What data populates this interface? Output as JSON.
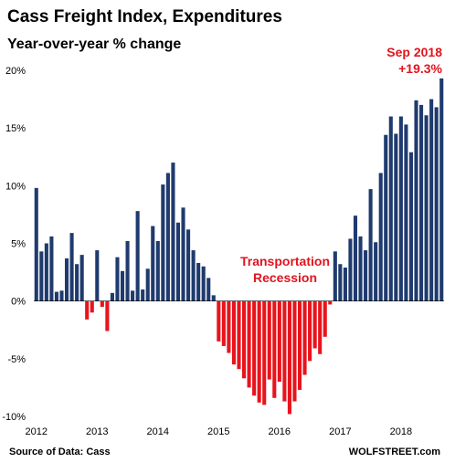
{
  "chart_data": {
    "type": "bar",
    "title": "Cass Freight Index, Expenditures",
    "subtitle": "Year-over-year % change",
    "ylim": [
      -10,
      20
    ],
    "y_ticks": [
      -10,
      -5,
      0,
      5,
      10,
      15,
      20
    ],
    "y_tick_labels": [
      "-10%",
      "-5%",
      "0%",
      "5%",
      "10%",
      "15%",
      "20%"
    ],
    "x_tick_labels": [
      "2012",
      "2013",
      "2014",
      "2015",
      "2016",
      "2017",
      "2018"
    ],
    "grid": false,
    "colors": {
      "positive": "#1f3b6e",
      "negative": "#e8141c",
      "annotation": "#e0141e"
    },
    "series": [
      {
        "months": [
          "2012-01",
          "2012-02",
          "2012-03",
          "2012-04",
          "2012-05",
          "2012-06",
          "2012-07",
          "2012-08",
          "2012-09",
          "2012-10",
          "2012-11",
          "2012-12",
          "2013-01",
          "2013-02",
          "2013-03",
          "2013-04",
          "2013-05",
          "2013-06",
          "2013-07",
          "2013-08",
          "2013-09",
          "2013-10",
          "2013-11",
          "2013-12",
          "2014-01",
          "2014-02",
          "2014-03",
          "2014-04",
          "2014-05",
          "2014-06",
          "2014-07",
          "2014-08",
          "2014-09",
          "2014-10",
          "2014-11",
          "2014-12",
          "2015-01",
          "2015-02",
          "2015-03",
          "2015-04",
          "2015-05",
          "2015-06",
          "2015-07",
          "2015-08",
          "2015-09",
          "2015-10",
          "2015-11",
          "2015-12",
          "2016-01",
          "2016-02",
          "2016-03",
          "2016-04",
          "2016-05",
          "2016-06",
          "2016-07",
          "2016-08",
          "2016-09",
          "2016-10",
          "2016-11",
          "2016-12",
          "2017-01",
          "2017-02",
          "2017-03",
          "2017-04",
          "2017-05",
          "2017-06",
          "2017-07",
          "2017-08",
          "2017-09",
          "2017-10",
          "2017-11",
          "2017-12",
          "2018-01",
          "2018-02",
          "2018-03",
          "2018-04",
          "2018-05",
          "2018-06",
          "2018-07",
          "2018-08",
          "2018-09"
        ],
        "values": [
          9.8,
          4.3,
          5.0,
          5.6,
          0.8,
          0.9,
          3.7,
          5.9,
          3.2,
          4.0,
          -1.6,
          -1.0,
          4.4,
          -0.5,
          -2.6,
          0.7,
          3.8,
          2.6,
          5.2,
          0.9,
          7.8,
          1.0,
          2.8,
          6.5,
          5.2,
          10.1,
          11.1,
          12.0,
          6.8,
          8.1,
          6.2,
          4.4,
          3.3,
          3.0,
          2.0,
          0.5,
          -3.5,
          -3.9,
          -4.5,
          -5.5,
          -5.9,
          -6.7,
          -7.5,
          -8.2,
          -8.8,
          -9.0,
          -6.8,
          -8.4,
          -7.0,
          -8.7,
          -9.8,
          -8.7,
          -7.7,
          -6.4,
          -5.2,
          -4.1,
          -4.6,
          -3.1,
          -0.3,
          4.3,
          3.2,
          2.9,
          5.4,
          7.4,
          5.6,
          4.4,
          9.7,
          5.1,
          11.1,
          14.4,
          16.0,
          14.5,
          16.0,
          15.3,
          12.9,
          17.4,
          17.0,
          16.1,
          17.5,
          16.8,
          19.3
        ]
      }
    ],
    "annotations": {
      "recession_line1": "Transportation",
      "recession_line2": "Recession",
      "last_point_date": "Sep 2018",
      "last_point_value": "+19.3%"
    },
    "source": "Source of Data: Cass",
    "credit": "WOLFSTREET.com"
  }
}
